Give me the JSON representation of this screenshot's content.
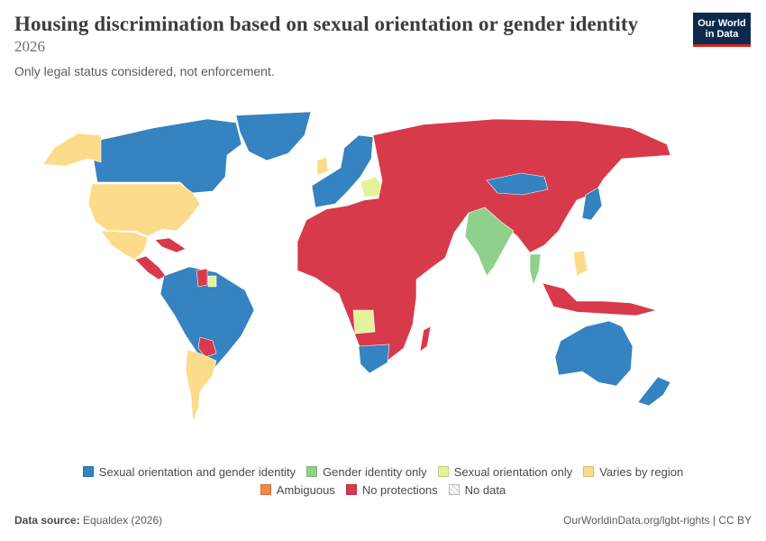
{
  "header": {
    "title": "Housing discrimination based on sexual orientation or gender identity",
    "year": "2026",
    "subtitle": "Only legal status considered, not enforcement."
  },
  "logo": {
    "line1": "Our World",
    "line2": "in Data"
  },
  "colors": {
    "so_gi": "#3583c0",
    "gi_only": "#8fd18c",
    "so_only": "#e5f29c",
    "varies": "#fcdb8b",
    "ambiguous": "#f6864a",
    "none": "#d73a4a",
    "nodata": "#e0e0e0"
  },
  "legend": [
    {
      "key": "so_gi",
      "label": "Sexual orientation and gender identity"
    },
    {
      "key": "gi_only",
      "label": "Gender identity only"
    },
    {
      "key": "so_only",
      "label": "Sexual orientation only"
    },
    {
      "key": "varies",
      "label": "Varies by region"
    },
    {
      "key": "ambiguous",
      "label": "Ambiguous"
    },
    {
      "key": "none",
      "label": "No protections"
    },
    {
      "key": "nodata",
      "label": "No data"
    }
  ],
  "map_regions": [
    {
      "region": "Canada",
      "category": "so_gi"
    },
    {
      "region": "Greenland",
      "category": "so_gi"
    },
    {
      "region": "Alaska",
      "category": "varies"
    },
    {
      "region": "United States",
      "category": "varies"
    },
    {
      "region": "Mexico",
      "category": "varies"
    },
    {
      "region": "Central America",
      "category": "none"
    },
    {
      "region": "Brazil and most of South America",
      "category": "so_gi"
    },
    {
      "region": "Argentina",
      "category": "varies"
    },
    {
      "region": "Paraguay",
      "category": "none"
    },
    {
      "region": "Guyana",
      "category": "none"
    },
    {
      "region": "Suriname",
      "category": "so_only"
    },
    {
      "region": "Western Europe and Nordics",
      "category": "so_gi"
    },
    {
      "region": "United Kingdom",
      "category": "varies"
    },
    {
      "region": "Eastern Europe",
      "category": "so_only"
    },
    {
      "region": "Russia, Africa, Middle East, Central and East Asia",
      "category": "none"
    },
    {
      "region": "Mongolia",
      "category": "so_gi"
    },
    {
      "region": "India",
      "category": "gi_only"
    },
    {
      "region": "Thailand",
      "category": "gi_only"
    },
    {
      "region": "Japan",
      "category": "so_gi"
    },
    {
      "region": "Philippines",
      "category": "varies"
    },
    {
      "region": "Angola",
      "category": "so_only"
    },
    {
      "region": "South Africa",
      "category": "so_gi"
    },
    {
      "region": "Australia",
      "category": "so_gi"
    },
    {
      "region": "New Zealand",
      "category": "so_gi"
    },
    {
      "region": "Indonesia and Papua New Guinea",
      "category": "none"
    }
  ],
  "footer": {
    "source_label": "Data source:",
    "source": "Equaldex (2026)",
    "url": "OurWorldinData.org/lgbt-rights | CC BY"
  }
}
